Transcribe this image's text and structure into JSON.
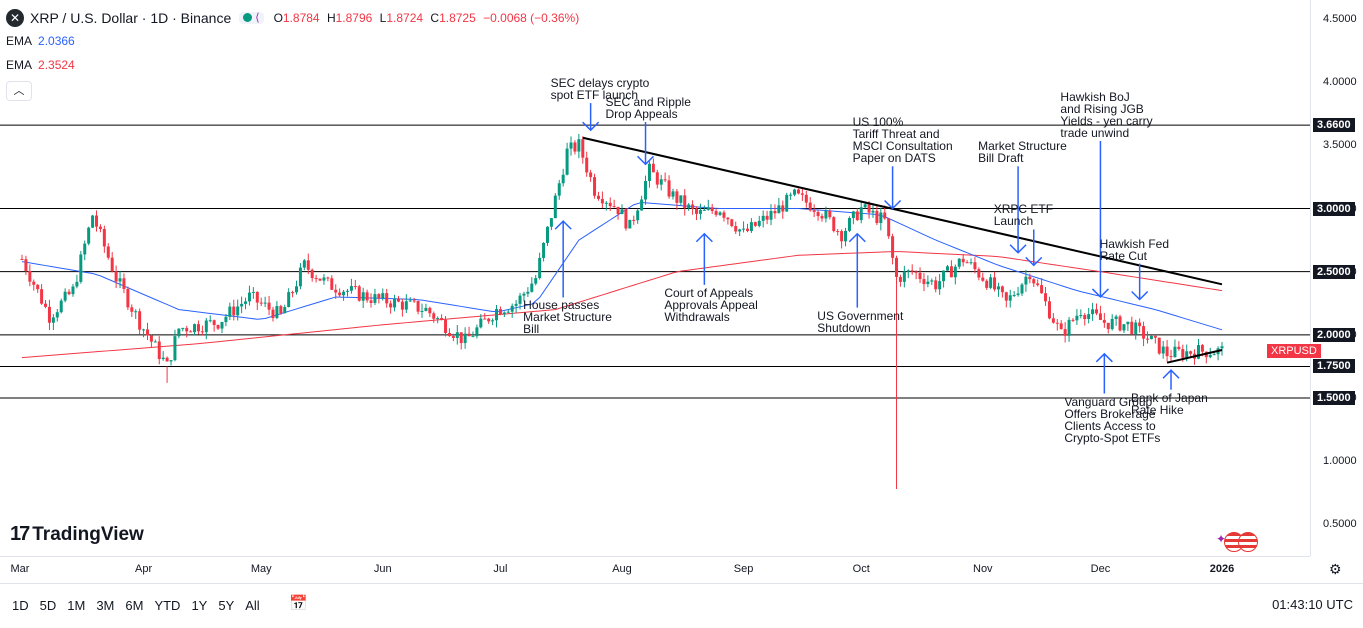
{
  "header": {
    "symbol": "XRP / U.S. Dollar · 1D · Binance",
    "ohlc": {
      "o_label": "O",
      "o": "1.8784",
      "h_label": "H",
      "h": "1.8796",
      "l_label": "L",
      "l": "1.8724",
      "c_label": "C",
      "c": "1.8725",
      "change": "−0.0068 (−0.36%)"
    },
    "ema_fast": {
      "label": "EMA",
      "value": "2.0366",
      "color": "#2962ff"
    },
    "ema_slow": {
      "label": "EMA",
      "value": "2.3524",
      "color": "#f23645"
    }
  },
  "colors": {
    "up": "#089981",
    "down": "#f23645",
    "arrow": "#2962ff",
    "trend": "#000000"
  },
  "chart_data": {
    "type": "candlestick",
    "symbol_badge": "XRPUSD",
    "y_axis": {
      "ticks": [
        "0.5000",
        "1.0000",
        "1.5000",
        "2.0000",
        "2.5000",
        "3.0000",
        "3.5000",
        "4.0000",
        "4.5000"
      ],
      "range": [
        0.25,
        4.65
      ]
    },
    "x_axis": {
      "ticks": [
        "Mar",
        "Apr",
        "May",
        "Jun",
        "Jul",
        "Aug",
        "Sep",
        "Oct",
        "Nov",
        "Dec",
        "2026"
      ],
      "range": [
        "2025-03-01",
        "2026-01-31"
      ]
    },
    "key_levels": [
      "3.6600",
      "3.0000",
      "2.5000",
      "2.0000",
      "1.7500",
      "1.5000"
    ],
    "trendlines": [
      {
        "from": [
          "2025-07-22",
          3.56
        ],
        "to": [
          "2026-01-01",
          2.4
        ]
      },
      {
        "from": [
          "2025-12-18",
          1.78
        ],
        "to": [
          "2026-01-01",
          1.88
        ]
      }
    ],
    "ohlc_path": [
      [
        "2025-03-01",
        2.6
      ],
      [
        "2025-03-08",
        2.15
      ],
      [
        "2025-03-14",
        2.35
      ],
      [
        "2025-03-19",
        2.95
      ],
      [
        "2025-03-25",
        2.45
      ],
      [
        "2025-03-31",
        2.1
      ],
      [
        "2025-04-07",
        1.75
      ],
      [
        "2025-04-10",
        2.05
      ],
      [
        "2025-04-20",
        2.1
      ],
      [
        "2025-04-28",
        2.3
      ],
      [
        "2025-05-06",
        2.15
      ],
      [
        "2025-05-12",
        2.55
      ],
      [
        "2025-05-18",
        2.4
      ],
      [
        "2025-05-28",
        2.3
      ],
      [
        "2025-06-05",
        2.25
      ],
      [
        "2025-06-12",
        2.2
      ],
      [
        "2025-06-22",
        1.95
      ],
      [
        "2025-06-30",
        2.2
      ],
      [
        "2025-07-05",
        2.25
      ],
      [
        "2025-07-10",
        2.45
      ],
      [
        "2025-07-14",
        2.95
      ],
      [
        "2025-07-18",
        3.45
      ],
      [
        "2025-07-21",
        3.5
      ],
      [
        "2025-07-25",
        3.15
      ],
      [
        "2025-07-31",
        3.0
      ],
      [
        "2025-08-03",
        2.85
      ],
      [
        "2025-08-08",
        3.3
      ],
      [
        "2025-08-14",
        3.1
      ],
      [
        "2025-08-20",
        2.95
      ],
      [
        "2025-08-26",
        3.0
      ],
      [
        "2025-09-01",
        2.8
      ],
      [
        "2025-09-08",
        2.95
      ],
      [
        "2025-09-14",
        3.1
      ],
      [
        "2025-09-20",
        3.0
      ],
      [
        "2025-09-26",
        2.8
      ],
      [
        "2025-10-01",
        3.0
      ],
      [
        "2025-10-07",
        2.9
      ],
      [
        "2025-10-10",
        2.45
      ],
      [
        "2025-10-14",
        2.5
      ],
      [
        "2025-10-20",
        2.4
      ],
      [
        "2025-10-27",
        2.6
      ],
      [
        "2025-11-03",
        2.4
      ],
      [
        "2025-11-07",
        2.25
      ],
      [
        "2025-11-13",
        2.5
      ],
      [
        "2025-11-21",
        2.0
      ],
      [
        "2025-11-26",
        2.2
      ],
      [
        "2025-12-02",
        2.1
      ],
      [
        "2025-12-08",
        2.08
      ],
      [
        "2025-12-12",
        2.0
      ],
      [
        "2025-12-18",
        1.85
      ],
      [
        "2025-12-25",
        1.87
      ],
      [
        "2026-01-01",
        1.8725
      ]
    ],
    "ema_fast_path": [
      [
        "2025-03-01",
        2.58
      ],
      [
        "2025-03-20",
        2.48
      ],
      [
        "2025-04-10",
        2.2
      ],
      [
        "2025-05-01",
        2.12
      ],
      [
        "2025-05-20",
        2.3
      ],
      [
        "2025-06-10",
        2.28
      ],
      [
        "2025-06-30",
        2.18
      ],
      [
        "2025-07-10",
        2.25
      ],
      [
        "2025-07-21",
        2.75
      ],
      [
        "2025-08-05",
        3.05
      ],
      [
        "2025-08-25",
        3.0
      ],
      [
        "2025-09-15",
        3.0
      ],
      [
        "2025-10-06",
        2.95
      ],
      [
        "2025-10-20",
        2.75
      ],
      [
        "2025-11-05",
        2.55
      ],
      [
        "2025-11-25",
        2.35
      ],
      [
        "2025-12-15",
        2.2
      ],
      [
        "2026-01-01",
        2.04
      ]
    ],
    "ema_slow_path": [
      [
        "2025-03-01",
        1.82
      ],
      [
        "2025-04-15",
        1.93
      ],
      [
        "2025-06-01",
        2.08
      ],
      [
        "2025-07-15",
        2.2
      ],
      [
        "2025-08-15",
        2.5
      ],
      [
        "2025-09-15",
        2.63
      ],
      [
        "2025-10-10",
        2.66
      ],
      [
        "2025-11-05",
        2.62
      ],
      [
        "2025-12-01",
        2.5
      ],
      [
        "2026-01-01",
        2.35
      ]
    ],
    "spikes": [
      {
        "date": "2025-04-07",
        "low": 1.62
      },
      {
        "date": "2025-10-10",
        "low": 0.78
      }
    ],
    "annotations": [
      {
        "text": "SEC delays crypto\nspot ETF launch",
        "date": "2025-07-24",
        "price": 3.85,
        "arrow": "down",
        "arrow_price": 3.62
      },
      {
        "text": "SEC and Ripple\nDrop Appeals",
        "date": "2025-08-07",
        "price": 3.7,
        "arrow": "down",
        "arrow_price": 3.35
      },
      {
        "text": "US 100%\nTariff Threat and\nMSCI Consultation\nPaper on DATS",
        "date": "2025-10-09",
        "price": 3.35,
        "arrow": "down",
        "arrow_price": 3.0
      },
      {
        "text": "Market Structure\nBill Draft",
        "date": "2025-11-10",
        "price": 3.35,
        "arrow": "down",
        "arrow_price": 2.65
      },
      {
        "text": "Hawkish BoJ\nand Rising JGB\nYields - yen carry\ntrade unwind",
        "date": "2025-12-01",
        "price": 3.55,
        "arrow": "down",
        "arrow_price": 2.3
      },
      {
        "text": "XRPC ETF\nLaunch",
        "date": "2025-11-14",
        "price": 2.85,
        "arrow": "down",
        "arrow_price": 2.55
      },
      {
        "text": "Hawkish Fed\nRate Cut",
        "date": "2025-12-11",
        "price": 2.58,
        "arrow": "down",
        "arrow_price": 2.28
      },
      {
        "text": "House passes\nMarket Structure\nBill",
        "date": "2025-07-17",
        "price": 2.28,
        "arrow": "up",
        "arrow_price": 2.9
      },
      {
        "text": "Court of Appeals\nApprovals Appeal\nWithdrawals",
        "date": "2025-08-22",
        "price": 2.38,
        "arrow": "up",
        "arrow_price": 2.8
      },
      {
        "text": "US Government\nShutdown",
        "date": "2025-09-30",
        "price": 2.2,
        "arrow": "up",
        "arrow_price": 2.8
      },
      {
        "text": "Vanguard Group\nOffers Brokerage\nClients Access to\nCrypto-Spot ETFs",
        "date": "2025-12-02",
        "price": 1.52,
        "arrow": "up",
        "arrow_price": 1.85
      },
      {
        "text": "Bank of Japan\nRate Hike",
        "date": "2025-12-19",
        "price": 1.55,
        "arrow": "up",
        "arrow_price": 1.72
      }
    ]
  },
  "toolbar": {
    "ranges": [
      "1D",
      "5D",
      "1M",
      "3M",
      "6M",
      "YTD",
      "1Y",
      "5Y",
      "All"
    ],
    "clock": "01:43:10 UTC",
    "logo": "TradingView"
  }
}
